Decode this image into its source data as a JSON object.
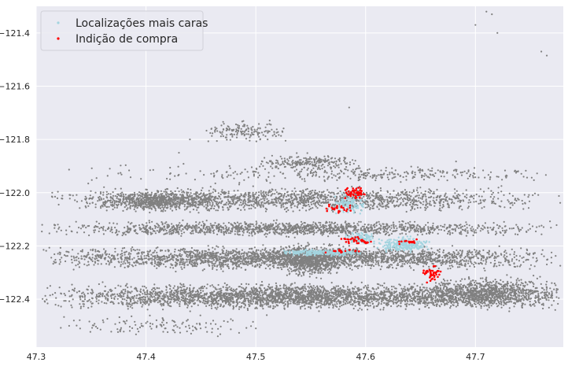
{
  "chart_data": {
    "type": "scatter",
    "title": "",
    "xlabel": "",
    "ylabel": "",
    "xlim": [
      47.3,
      47.78
    ],
    "ylim": [
      -122.58,
      -121.3
    ],
    "x_ticks": [
      "47.3",
      "47.4",
      "47.5",
      "47.6",
      "47.7"
    ],
    "y_ticks": [
      "−121.4",
      "−121.6",
      "−121.8",
      "−122.0",
      "−122.2",
      "−122.4"
    ],
    "grid": true,
    "legend_position": "top-left",
    "background_color": "#eaeaf2",
    "series": [
      {
        "name": "",
        "color": "#808080",
        "marker_size": 1.6,
        "approx_point_count": 12000,
        "clusters": [
          {
            "x": [
              47.3,
              47.78
            ],
            "y": [
              -122.45,
              -122.33
            ],
            "n": 3000
          },
          {
            "x": [
              47.3,
              47.78
            ],
            "y": [
              -122.3,
              -122.19
            ],
            "n": 2600
          },
          {
            "x": [
              47.3,
              47.78
            ],
            "y": [
              -122.17,
              -122.1
            ],
            "n": 1400
          },
          {
            "x": [
              47.3,
              47.78
            ],
            "y": [
              -122.08,
              -121.97
            ],
            "n": 1500
          },
          {
            "x": [
              47.35,
              47.47
            ],
            "y": [
              -122.08,
              -121.98
            ],
            "n": 700
          },
          {
            "x": [
              47.52,
              47.58
            ],
            "y": [
              -122.33,
              -122.18
            ],
            "n": 600
          },
          {
            "x": [
              47.64,
              47.78
            ],
            "y": [
              -122.45,
              -122.3
            ],
            "n": 900
          },
          {
            "x": [
              47.5,
              47.6
            ],
            "y": [
              -121.92,
              -121.85
            ],
            "n": 200
          },
          {
            "x": [
              47.45,
              47.53
            ],
            "y": [
              -121.82,
              -121.72
            ],
            "n": 150
          },
          {
            "x": [
              47.52,
              47.78
            ],
            "y": [
              -121.96,
              -121.9
            ],
            "n": 150
          },
          {
            "x": [
              47.3,
              47.78
            ],
            "y": [
              -121.98,
              -121.88
            ],
            "n": 200
          },
          {
            "x": [
              47.32,
              47.52
            ],
            "y": [
              -122.55,
              -122.45
            ],
            "n": 120
          }
        ]
      },
      {
        "name": "Localizações mais caras",
        "color": "#a3d4df",
        "marker_size": 1.8,
        "approx_point_count": 700,
        "clusters": [
          {
            "x": [
              47.52,
              47.6
            ],
            "y": [
              -122.24,
              -122.21
            ],
            "n": 230
          },
          {
            "x": [
              47.61,
              47.66
            ],
            "y": [
              -122.23,
              -122.16
            ],
            "n": 220
          },
          {
            "x": [
              47.58,
              47.61
            ],
            "y": [
              -122.2,
              -122.14
            ],
            "n": 120
          },
          {
            "x": [
              47.57,
              47.6
            ],
            "y": [
              -122.1,
              -121.98
            ],
            "n": 130
          }
        ]
      },
      {
        "name": "Indição de compra",
        "color": "#ff0000",
        "marker_size": 2.0,
        "approx_point_count": 220,
        "clusters": [
          {
            "x": [
              47.58,
              47.6
            ],
            "y": [
              -122.03,
              -121.97
            ],
            "n": 50
          },
          {
            "x": [
              47.56,
              47.59
            ],
            "y": [
              -122.08,
              -122.04
            ],
            "n": 25
          },
          {
            "x": [
              47.57,
              47.61
            ],
            "y": [
              -122.2,
              -122.16
            ],
            "n": 35
          },
          {
            "x": [
              47.56,
              47.6
            ],
            "y": [
              -122.23,
              -122.21
            ],
            "n": 15
          },
          {
            "x": [
              47.63,
              47.65
            ],
            "y": [
              -122.2,
              -122.17
            ],
            "n": 15
          },
          {
            "x": [
              47.65,
              47.67
            ],
            "y": [
              -122.34,
              -122.27
            ],
            "n": 40
          }
        ]
      }
    ],
    "isolated_points": [
      {
        "x": 47.71,
        "y": -121.32
      },
      {
        "x": 47.715,
        "y": -121.33
      },
      {
        "x": 47.72,
        "y": -121.4
      },
      {
        "x": 47.7,
        "y": -121.37
      },
      {
        "x": 47.76,
        "y": -121.47
      },
      {
        "x": 47.765,
        "y": -121.485
      },
      {
        "x": 47.43,
        "y": -121.42
      },
      {
        "x": 47.585,
        "y": -121.68
      },
      {
        "x": 47.43,
        "y": -121.85
      },
      {
        "x": 47.44,
        "y": -121.8
      },
      {
        "x": 47.51,
        "y": -122.46
      },
      {
        "x": 47.34,
        "y": -122.51
      },
      {
        "x": 47.33,
        "y": -122.5
      }
    ]
  }
}
